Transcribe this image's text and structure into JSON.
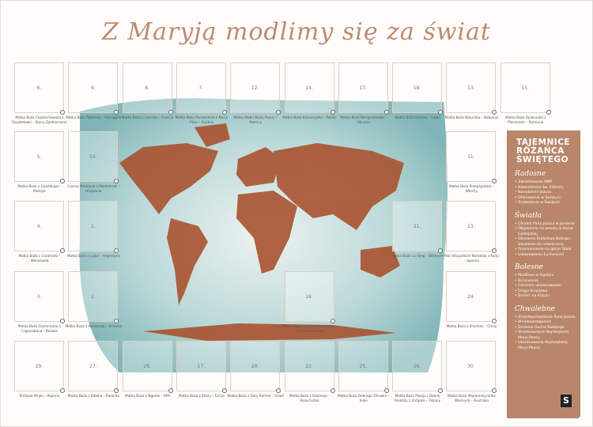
{
  "title": "Z Maryją modlimy się za świat",
  "cells": [
    {
      "num": "6.",
      "caption": "Matka Boża Częstochowska z Doylestown – Stany Zjednoczone"
    },
    {
      "num": "9.",
      "caption": "Matka Boża Fatimska – Portugalia"
    },
    {
      "num": "8.",
      "caption": "Matka Boża z Lourdes – Francja"
    },
    {
      "num": "7.",
      "caption": "Matka Boża Pocieszenia z Maria Plain – Austria"
    },
    {
      "num": "12.",
      "caption": "Matka Matki Bożej Panny – Niemcy"
    },
    {
      "num": "14.",
      "caption": "Matka Boża Kalwaryjska – Polska"
    },
    {
      "num": "17.",
      "caption": "Matka Boża Berdyczowska – Ukraina"
    },
    {
      "num": "18.",
      "caption": "Matka Boża Harissa – Liban"
    },
    {
      "num": "13.",
      "caption": "Matka Boża Betumba – Bobonuś"
    },
    {
      "num": "15.",
      "caption": "Matka Boża Opiekunka z Płaszczem – Rumunia"
    },
    {
      "num": "5.",
      "caption": "Matka Boża z Guadalupe – Meksyk"
    },
    {
      "num": "10.",
      "caption": "Czarna Madonna z Montserrat – Hiszpania"
    },
    {
      "num": "11.",
      "caption": "Matka Boża Pompejańska – Włochy"
    },
    {
      "num": "4.",
      "caption": "Matka Boża z Coromoto – Wenezuela"
    },
    {
      "num": "1.",
      "caption": "Matka Boża z Luján – Argentyna"
    },
    {
      "num": "21.",
      "caption": "Matka Boża La Vang – Wietnam"
    },
    {
      "num": "23.",
      "caption": "Pani Wszystkich Narodów z Akity – Japonia"
    },
    {
      "num": "3.",
      "caption": "Matka Boża Gromniczna z Copacabana – Boliwia"
    },
    {
      "num": "2.",
      "caption": "Matka Boża z Aparecida – Brazylia"
    },
    {
      "num": "16.",
      "caption": "Matka Boża od Wstawiennictwa – Bolesna Helena"
    },
    {
      "num": "24.",
      "caption": "Matka Boża z Sheshan – Chiny"
    },
    {
      "num": "29.",
      "caption": "Królowa Afryki – Algieria"
    },
    {
      "num": "27.",
      "caption": "Matka Boża z Kibeho – Rwanda"
    },
    {
      "num": "28.",
      "caption": "Matka Boża z Ngome – RPA"
    },
    {
      "num": "17.",
      "caption": "Matka Boża z Efezu – Turcja"
    },
    {
      "num": "20.",
      "caption": "Matka Boża z Góry Karmel – Izrael"
    },
    {
      "num": "22.",
      "caption": "Matka Boża z Ozornoje – Kazachstan"
    },
    {
      "num": "25.",
      "caption": "Matka Boża Dobrego Zdrowia – Indie"
    },
    {
      "num": "26.",
      "caption": "Matka Boża Pokoju i Dobrej Podróży z Antipolo – Filipiny"
    },
    {
      "num": "30.",
      "caption": "Matka Boża Wspomożycielka Wiernych – Australia"
    }
  ],
  "panel": {
    "title": "TAJEMNICE RÓŻAŃCA ŚWIĘTEGO",
    "groups": [
      {
        "name": "Radosne",
        "items": [
          "Zwiastowanie NMP",
          "Nawiedzenie św. Elżbiety",
          "Narodzenie Jezusa",
          "Ofiarowanie w Świątyni",
          "Znalezienie w Świątyni"
        ]
      },
      {
        "name": "Światła",
        "items": [
          "Chrzest Pana Jezusa w Jordanie",
          "Objawienie na weselu w Kanie Galilejskiej",
          "Głoszenie Królestwa Bożego i wzywanie do nawrócenia",
          "Przemienienie na górze Tabor",
          "Ustanowienie Eucharystii"
        ]
      },
      {
        "name": "Bolesne",
        "items": [
          "Modlitwa w Ogrójcu",
          "Biczowanie",
          "Cierniem ukoronowanie",
          "Droga Krzyżowa",
          "Śmierć na Krzyżu"
        ]
      },
      {
        "name": "Chwalebne",
        "items": [
          "Zmartwychwstanie Pana Jezusa",
          "Wniebowstąpienie",
          "Zesłanie Ducha Świętego",
          "Wniebowzięcie Najświętszej Maryi Panny",
          "Ukoronowanie Najświętszej Maryi Panny"
        ]
      }
    ]
  },
  "logo": "S",
  "colors": {
    "accent": "#b9866a",
    "map_water": "#6fb0b4",
    "land": "#a9532f"
  }
}
